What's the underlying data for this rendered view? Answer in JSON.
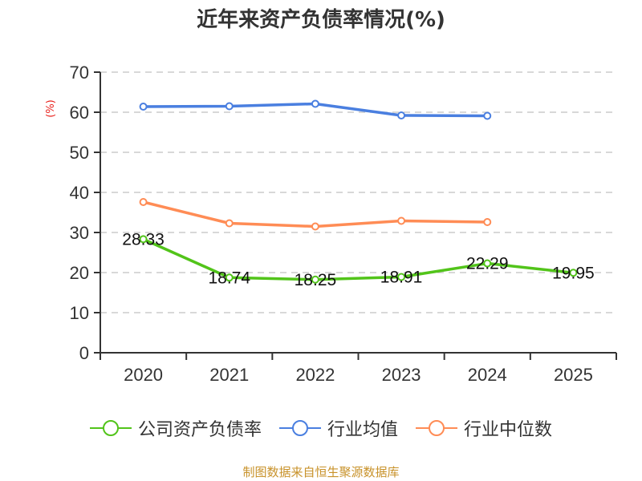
{
  "title": "近年来资产负债率情况(%)",
  "unit_label": "(%)",
  "source": "制图数据来自恒生聚源数据库",
  "colors": {
    "company": "#52c41a",
    "industry_avg": "#4a7fe0",
    "industry_median": "#ff8c55",
    "grid": "#cccccc",
    "axis": "#333333",
    "unit": "#e8201b",
    "source": "#c8922a"
  },
  "legend": [
    {
      "label": "公司资产负债率",
      "color": "#52c41a"
    },
    {
      "label": "行业均值",
      "color": "#4a7fe0"
    },
    {
      "label": "行业中位数",
      "color": "#ff8c55"
    }
  ],
  "chart_data": {
    "type": "line",
    "title": "近年来资产负债率情况(%)",
    "xlabel": "",
    "ylabel": "(%)",
    "categories": [
      "2020",
      "2021",
      "2022",
      "2023",
      "2024",
      "2025"
    ],
    "ylim": [
      0,
      70
    ],
    "yticks": [
      0,
      10,
      20,
      30,
      40,
      50,
      60,
      70
    ],
    "grid": true,
    "legend_position": "bottom",
    "series": [
      {
        "name": "公司资产负债率",
        "values": [
          28.33,
          18.74,
          18.25,
          18.91,
          22.29,
          19.95
        ],
        "labels": [
          "28.33",
          "18.74",
          "18.25",
          "18.91",
          "22.29",
          "19.95"
        ]
      },
      {
        "name": "行业均值",
        "values": [
          61.4,
          61.5,
          62.1,
          59.2,
          59.1,
          null
        ]
      },
      {
        "name": "行业中位数",
        "values": [
          37.6,
          32.3,
          31.5,
          32.9,
          32.6,
          null
        ]
      }
    ]
  }
}
